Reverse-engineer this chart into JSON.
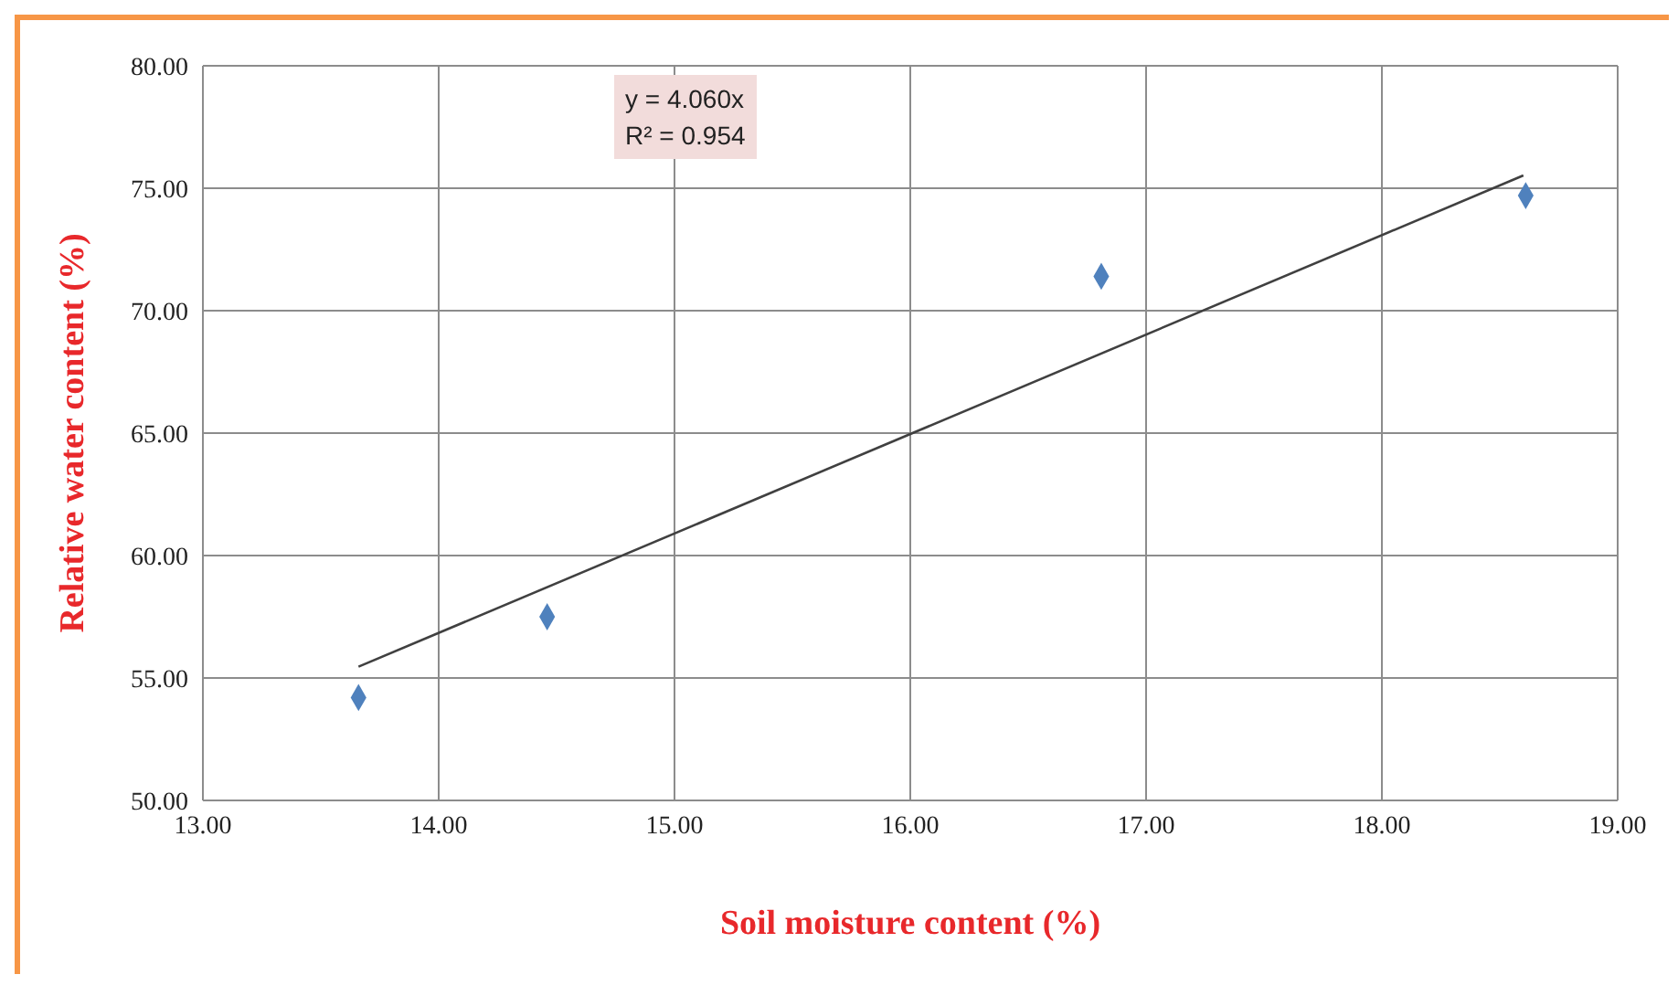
{
  "chart_data": {
    "type": "scatter",
    "xlabel": "Soil moisture content (%)",
    "ylabel": "Relative water content (%)",
    "annotations": [
      "y = 4.060x",
      "R² = 0.954"
    ],
    "xlim": [
      13,
      19
    ],
    "xticks": [
      {
        "value": 13,
        "label": "13.00"
      },
      {
        "value": 14,
        "label": "14.00"
      },
      {
        "value": 15,
        "label": "15.00"
      },
      {
        "value": 16,
        "label": "16.00"
      },
      {
        "value": 17,
        "label": "17.00"
      },
      {
        "value": 18,
        "label": "18.00"
      },
      {
        "value": 19,
        "label": "19.00"
      }
    ],
    "ylim": [
      50,
      80
    ],
    "yticks": [
      {
        "value": 50,
        "label": "50.00"
      },
      {
        "value": 55,
        "label": "55.00"
      },
      {
        "value": 60,
        "label": "60.00"
      },
      {
        "value": 65,
        "label": "65.00"
      },
      {
        "value": 70,
        "label": "70.00"
      },
      {
        "value": 75,
        "label": "75.00"
      },
      {
        "value": 80,
        "label": "80.00"
      }
    ],
    "grid": true,
    "series": [
      {
        "color": "#4f81bd",
        "marker": "diamond",
        "x": [
          13.66,
          14.46,
          16.81,
          18.61
        ],
        "values": [
          54.2,
          57.5,
          71.4,
          74.7
        ]
      },
      {
        "type": "line",
        "color": "#404040",
        "marker": "none",
        "x": [
          13.66,
          18.6
        ],
        "values": [
          55.46,
          75.52
        ]
      }
    ]
  }
}
